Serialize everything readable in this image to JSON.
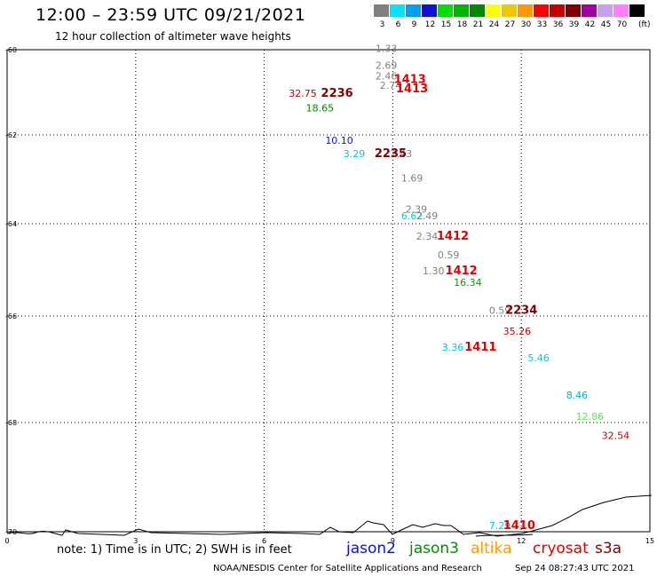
{
  "header": {
    "title": "12:00 – 23:59 UTC 09/21/2021",
    "subtitle": "12 hour collection of altimeter wave heights"
  },
  "color_scale": {
    "unit": "(ft)",
    "bins": [
      {
        "label": "3",
        "color": "#808080"
      },
      {
        "label": "6",
        "color": "#00e5ff"
      },
      {
        "label": "9",
        "color": "#00a0f0"
      },
      {
        "label": "12",
        "color": "#1010d8"
      },
      {
        "label": "15",
        "color": "#00e000"
      },
      {
        "label": "18",
        "color": "#00b400"
      },
      {
        "label": "21",
        "color": "#008800"
      },
      {
        "label": "24",
        "color": "#ffff00"
      },
      {
        "label": "27",
        "color": "#f0c800"
      },
      {
        "label": "30",
        "color": "#ff9900"
      },
      {
        "label": "33",
        "color": "#ff0000"
      },
      {
        "label": "36",
        "color": "#c80000"
      },
      {
        "label": "39",
        "color": "#800000"
      },
      {
        "label": "42",
        "color": "#a000a0"
      },
      {
        "label": "45",
        "color": "#c8a0f0"
      },
      {
        "label": "70",
        "color": "#ff80ff"
      },
      {
        "label": "",
        "color": "#000000"
      }
    ]
  },
  "map": {
    "lat_labels": [
      "-60",
      "-62",
      "-64",
      "-66",
      "-68",
      "-70"
    ],
    "lon_labels": [
      "0",
      "3",
      "6",
      "9",
      "12",
      "15"
    ],
    "observations": [
      {
        "text": "1.33",
        "lon": 8.85,
        "lat": -60.05,
        "color": "#808080"
      },
      {
        "text": "2.69",
        "lon": 8.85,
        "lat": -60.45,
        "color": "#808080"
      },
      {
        "text": "2.46",
        "lon": 8.85,
        "lat": -60.7,
        "color": "#808080"
      },
      {
        "text": "2.74",
        "lon": 8.95,
        "lat": -60.92,
        "color": "#808080"
      },
      {
        "text": "32.75",
        "lon": 6.9,
        "lat": -61.1,
        "color": "#c80000"
      },
      {
        "text": "18.65",
        "lon": 7.3,
        "lat": -61.45,
        "color": "#008800"
      },
      {
        "text": "10.10",
        "lon": 7.75,
        "lat": -62.2,
        "color": "#1010d8"
      },
      {
        "text": "3.29",
        "lon": 8.1,
        "lat": -62.5,
        "color": "#00c8e0"
      },
      {
        "text": "2.43",
        "lon": 9.2,
        "lat": -62.5,
        "color": "#808080"
      },
      {
        "text": "1.69",
        "lon": 9.45,
        "lat": -63.05,
        "color": "#808080"
      },
      {
        "text": "2.39",
        "lon": 9.55,
        "lat": -63.75,
        "color": "#808080"
      },
      {
        "text": "6.62",
        "lon": 9.45,
        "lat": -63.9,
        "color": "#00c8e0"
      },
      {
        "text": "2.49",
        "lon": 9.8,
        "lat": -63.9,
        "color": "#808080"
      },
      {
        "text": "2.34",
        "lon": 9.8,
        "lat": -64.35,
        "color": "#808080"
      },
      {
        "text": "0.59",
        "lon": 10.3,
        "lat": -64.75,
        "color": "#808080"
      },
      {
        "text": "1.30",
        "lon": 9.95,
        "lat": -65.1,
        "color": "#808080"
      },
      {
        "text": "16.34",
        "lon": 10.75,
        "lat": -65.35,
        "color": "#00a000"
      },
      {
        "text": "0.59",
        "lon": 11.5,
        "lat": -65.95,
        "color": "#808080"
      },
      {
        "text": "35.26",
        "lon": 11.9,
        "lat": -66.35,
        "color": "#c80000"
      },
      {
        "text": "3.36",
        "lon": 10.4,
        "lat": -66.65,
        "color": "#00c8e0"
      },
      {
        "text": "5.46",
        "lon": 12.4,
        "lat": -66.85,
        "color": "#00c8e0"
      },
      {
        "text": "8.46",
        "lon": 13.3,
        "lat": -67.55,
        "color": "#00b0c8"
      },
      {
        "text": "12.86",
        "lon": 13.6,
        "lat": -67.95,
        "color": "#60e060"
      },
      {
        "text": "32.54",
        "lon": 14.2,
        "lat": -68.3,
        "color": "#c80000"
      },
      {
        "text": "7.29",
        "lon": 11.5,
        "lat": -69.95,
        "color": "#00c8e0"
      }
    ],
    "passes": [
      {
        "text": "1413",
        "lon": 9.4,
        "lat": -60.78,
        "color": "#e00000"
      },
      {
        "text": "1413",
        "lon": 9.45,
        "lat": -61.0,
        "color": "#e00000"
      },
      {
        "text": "2236",
        "lon": 7.7,
        "lat": -61.1,
        "color": "#800000"
      },
      {
        "text": "2235",
        "lon": 8.95,
        "lat": -62.5,
        "color": "#800000"
      },
      {
        "text": "1412",
        "lon": 10.4,
        "lat": -64.35,
        "color": "#e00000"
      },
      {
        "text": "1412",
        "lon": 10.6,
        "lat": -65.1,
        "color": "#e00000"
      },
      {
        "text": "2234",
        "lon": 12.0,
        "lat": -65.95,
        "color": "#800000"
      },
      {
        "text": "1411",
        "lon": 11.05,
        "lat": -66.65,
        "color": "#e00000"
      },
      {
        "text": "1410",
        "lon": 11.95,
        "lat": -69.95,
        "color": "#e00000"
      }
    ]
  },
  "footer": {
    "note": "note: 1) Time is in UTC; 2) SWH is in feet",
    "satellites": [
      {
        "name": "jason2",
        "color": "#1010d8"
      },
      {
        "name": "jason3",
        "color": "#009000"
      },
      {
        "name": "altika",
        "color": "#ff9900"
      },
      {
        "name": "cryosat",
        "color": "#e00000"
      },
      {
        "name": "s3a",
        "color": "#800000"
      }
    ],
    "credit": "NOAA/NESDIS Center for Satellite Applications and Research",
    "timestamp": "Sep 24 08:27:43 UTC 2021"
  }
}
